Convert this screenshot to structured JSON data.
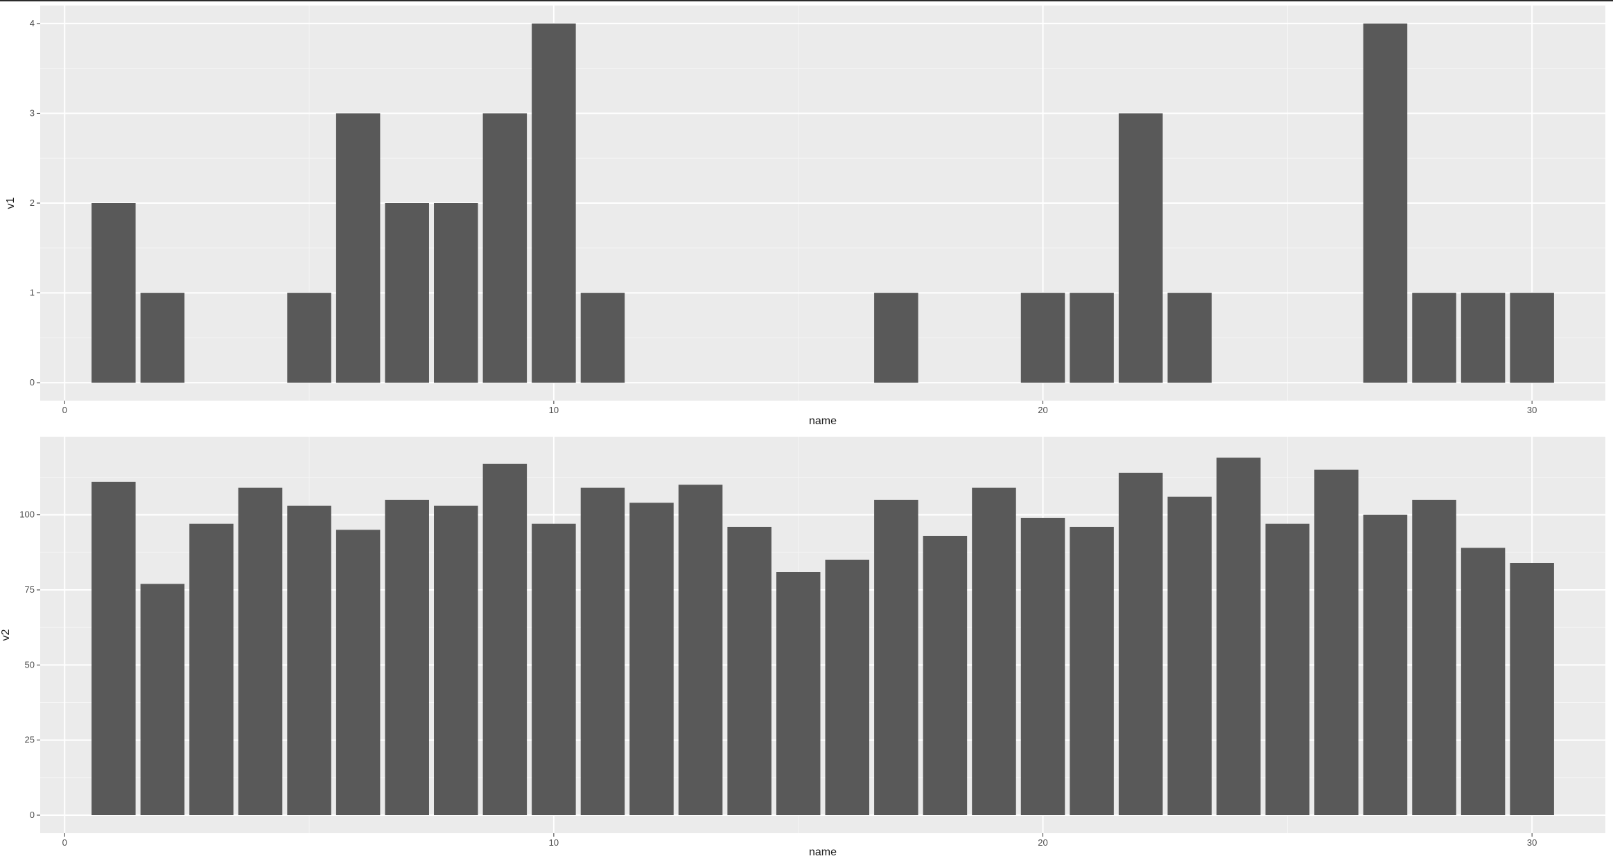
{
  "colors": {
    "panel_background": "#ebebeb",
    "major_grid": "#ffffff",
    "minor_grid": "#f5f5f5",
    "bar_fill": "#595959",
    "tick_text": "#4d4d4d",
    "axis_title_text": "#1a1a1a"
  },
  "chart_data": [
    {
      "type": "bar",
      "xlabel": "name",
      "ylabel": "v1",
      "xlim": [
        -0.5,
        31.5
      ],
      "ylim": [
        -0.2,
        4.2
      ],
      "x_ticks": [
        0,
        10,
        20,
        30
      ],
      "y_ticks": [
        0,
        1,
        2,
        3,
        4
      ],
      "x_tick_labels": [
        "0",
        "10",
        "20",
        "30"
      ],
      "y_tick_labels": [
        "0",
        "1",
        "2",
        "3",
        "4"
      ],
      "grid": true,
      "x": [
        1,
        2,
        5,
        6,
        7,
        8,
        9,
        10,
        11,
        17,
        20,
        21,
        22,
        23,
        27,
        28,
        29,
        30
      ],
      "values": [
        2,
        1,
        1,
        3,
        2,
        2,
        3,
        4,
        1,
        1,
        1,
        1,
        3,
        1,
        4,
        1,
        1,
        1
      ]
    },
    {
      "type": "bar",
      "xlabel": "name",
      "ylabel": "v2",
      "xlim": [
        -0.5,
        31.5
      ],
      "ylim": [
        -6,
        126
      ],
      "x_ticks": [
        0,
        10,
        20,
        30
      ],
      "y_ticks": [
        0,
        25,
        50,
        75,
        100
      ],
      "x_tick_labels": [
        "0",
        "10",
        "20",
        "30"
      ],
      "y_tick_labels": [
        "0",
        "25",
        "50",
        "75",
        "100"
      ],
      "grid": true,
      "x": [
        1,
        2,
        3,
        4,
        5,
        6,
        7,
        8,
        9,
        10,
        11,
        12,
        13,
        14,
        15,
        16,
        17,
        18,
        19,
        20,
        21,
        22,
        23,
        24,
        25,
        26,
        27,
        28,
        29,
        30
      ],
      "values": [
        111,
        77,
        97,
        109,
        103,
        95,
        105,
        103,
        117,
        97,
        109,
        104,
        110,
        96,
        81,
        85,
        105,
        93,
        109,
        99,
        96,
        114,
        106,
        119,
        97,
        115,
        100,
        105,
        89,
        84
      ]
    }
  ]
}
